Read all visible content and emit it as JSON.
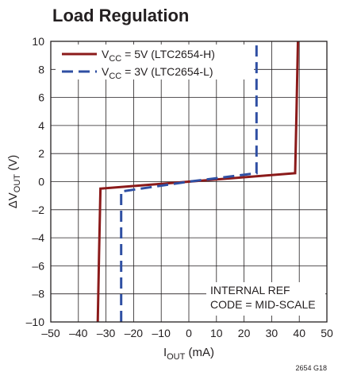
{
  "chart_data": {
    "type": "line",
    "title": "Load Regulation",
    "xlabel": "I_OUT (mA)",
    "ylabel": "ΔV_OUT (V)",
    "xlim": [
      -50,
      50
    ],
    "ylim": [
      -10,
      10
    ],
    "x_ticks": [
      -50,
      -40,
      -30,
      -20,
      -10,
      0,
      10,
      20,
      30,
      40,
      50
    ],
    "y_ticks": [
      10,
      8,
      6,
      4,
      2,
      0,
      -2,
      -4,
      -6,
      -8,
      -10
    ],
    "x_tick_labels": [
      "–50",
      "–40",
      "–30",
      "–20",
      "–10",
      "0",
      "10",
      "20",
      "30",
      "40",
      "50"
    ],
    "y_tick_labels": [
      "10",
      "8",
      "6",
      "4",
      "2",
      "0",
      "–2",
      "–4",
      "–6",
      "–8",
      "–10"
    ],
    "grid": true,
    "legend_position": "top-left",
    "series": [
      {
        "name": "VCC = 5V (LTC2654-H)",
        "legend_main": "V",
        "legend_sub": "CC",
        "legend_rest": " = 5V (LTC2654-H)",
        "color": "#8b1a1a",
        "style": "solid",
        "x": [
          -33,
          -32.5,
          -32,
          0,
          38.5,
          39,
          39.5
        ],
        "y": [
          -10,
          -5,
          -0.5,
          0,
          0.6,
          5,
          10
        ]
      },
      {
        "name": "VCC = 3V (LTC2654-L)",
        "legend_main": "V",
        "legend_sub": "CC",
        "legend_rest": " = 3V (LTC2654-L)",
        "color": "#2f4fa3",
        "style": "dashed",
        "x": [
          -24.5,
          -24.5,
          -24.5,
          0,
          24.5,
          24.5,
          24.5
        ],
        "y": [
          -10,
          -5,
          -0.7,
          0,
          0.6,
          5,
          10
        ]
      }
    ],
    "annotation_lines": [
      "INTERNAL REF",
      "CODE = MID-SCALE"
    ],
    "figure_id": "2654 G18"
  }
}
